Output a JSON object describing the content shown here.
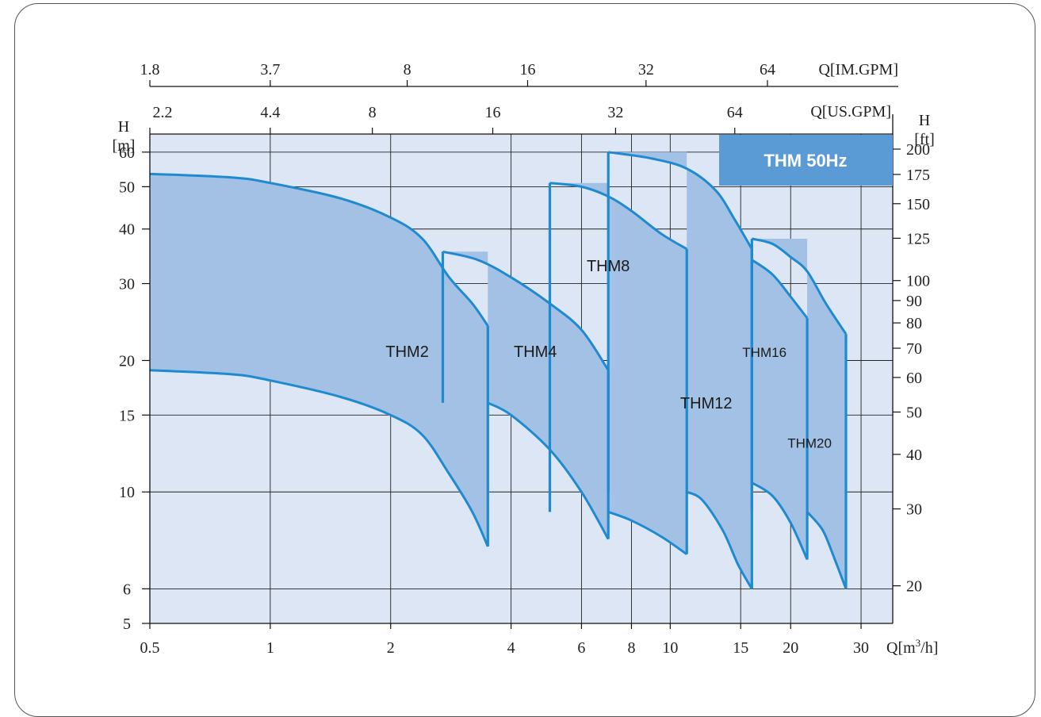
{
  "chart_data": {
    "type": "area",
    "badge": "THM 50Hz",
    "colors": {
      "plot_bg": "#dce6f4",
      "band_fill": "#a3c1e4",
      "curve": "#1f8ad0",
      "badge_bg": "#5b9bd5",
      "grid": "#222222"
    },
    "x_axis": {
      "label_main": "Q[m",
      "label_sup": "3",
      "label_end": "/h]",
      "scale": "log",
      "range": [
        0.5,
        36
      ],
      "ticks": [
        0.5,
        1,
        2,
        4,
        6,
        8,
        10,
        15,
        20,
        30
      ],
      "tick_labels": [
        "0.5",
        "1",
        "2",
        "4",
        "6",
        "8",
        "10",
        "15",
        "20",
        "30"
      ]
    },
    "y_axis_left": {
      "unit_letter": "H",
      "unit": "[m]",
      "scale": "log",
      "range": [
        5,
        66
      ],
      "ticks": [
        5,
        6,
        10,
        15,
        20,
        30,
        40,
        50,
        60
      ],
      "tick_labels": [
        "5",
        "6",
        "10",
        "15",
        "20",
        "30",
        "40",
        "50",
        "60"
      ],
      "grid_values": [
        6,
        10,
        15,
        20,
        30,
        40,
        50,
        60
      ]
    },
    "y_axis_right": {
      "unit_letter": "H",
      "unit": "[ft]",
      "ticks_ft": [
        20,
        30,
        40,
        50,
        60,
        70,
        80,
        90,
        100,
        125,
        150,
        175,
        200
      ],
      "tick_labels": [
        "20",
        "30",
        "40",
        "50",
        "60",
        "70",
        "80",
        "90",
        "100",
        "125",
        "150",
        "175",
        "200"
      ]
    },
    "us_gpm_axis": {
      "label": "Q[US.GPM]",
      "tick_labels": [
        "2.2",
        "4.4",
        "8",
        "16",
        "32",
        "64"
      ],
      "tick_q": [
        0.5,
        1,
        1.8,
        3.6,
        7.3,
        14.5
      ]
    },
    "im_gpm_axis": {
      "label": "Q[IM.GPM]",
      "tick_labels": [
        "1.8",
        "3.7",
        "8",
        "16",
        "32",
        "64"
      ],
      "tick_q": [
        0.5,
        1,
        2.2,
        4.4,
        8.7,
        17.5
      ]
    },
    "series": [
      {
        "name": "THM2",
        "label_at": [
          2.2,
          21
        ],
        "top": [
          [
            0.5,
            53.5
          ],
          [
            0.8,
            52.5
          ],
          [
            1.0,
            51
          ],
          [
            1.5,
            47
          ],
          [
            2.0,
            42.5
          ],
          [
            2.4,
            38
          ],
          [
            2.8,
            31
          ],
          [
            3.2,
            27
          ],
          [
            3.5,
            24
          ]
        ],
        "bottom": [
          [
            0.5,
            19
          ],
          [
            0.8,
            18.6
          ],
          [
            1.0,
            18
          ],
          [
            1.5,
            16.5
          ],
          [
            2.0,
            15
          ],
          [
            2.4,
            13.5
          ],
          [
            2.8,
            11
          ],
          [
            3.2,
            9
          ],
          [
            3.5,
            7.5
          ]
        ]
      },
      {
        "name": "THM4",
        "label_at": [
          4.6,
          21
        ],
        "top": [
          [
            2.7,
            35.5
          ],
          [
            3.3,
            34
          ],
          [
            4.0,
            31
          ],
          [
            5.0,
            27
          ],
          [
            6.0,
            23.5
          ],
          [
            7.0,
            19
          ]
        ],
        "bottom": [
          [
            3.5,
            16
          ],
          [
            4.0,
            15
          ],
          [
            5.0,
            12.5
          ],
          [
            6.0,
            10
          ],
          [
            7.0,
            7.8
          ]
        ]
      },
      {
        "name": "THM8",
        "label_at": [
          7.0,
          33
        ],
        "top": [
          [
            5.0,
            51
          ],
          [
            6.0,
            50
          ],
          [
            7.0,
            47.5
          ],
          [
            8.0,
            44
          ],
          [
            9.5,
            39
          ],
          [
            11.0,
            36
          ]
        ],
        "bottom": [
          [
            7.0,
            9
          ],
          [
            8.0,
            8.6
          ],
          [
            9.5,
            7.9
          ],
          [
            11.0,
            7.2
          ]
        ]
      },
      {
        "name": "THM12",
        "label_at": [
          12.3,
          16
        ],
        "top": [
          [
            7.0,
            60
          ],
          [
            9.0,
            58
          ],
          [
            11.0,
            55
          ],
          [
            13.0,
            49
          ],
          [
            14.5,
            42
          ],
          [
            16.0,
            36
          ]
        ],
        "bottom": [
          [
            11.0,
            10
          ],
          [
            12.0,
            9.6
          ],
          [
            13.5,
            8.2
          ],
          [
            14.8,
            6.8
          ],
          [
            16.0,
            6
          ]
        ]
      },
      {
        "name": "THM16",
        "label_at": [
          17.2,
          21
        ],
        "top": [
          [
            16.0,
            34
          ],
          [
            18.0,
            31.5
          ],
          [
            20.0,
            28
          ],
          [
            22.0,
            25
          ]
        ],
        "bottom": [
          [
            16.0,
            10.5
          ],
          [
            18.0,
            9.8
          ],
          [
            20.0,
            8.5
          ],
          [
            22.0,
            7
          ]
        ]
      },
      {
        "name": "THM20",
        "label_at": [
          22.3,
          13
        ],
        "top": [
          [
            16.0,
            38
          ],
          [
            18.0,
            37
          ],
          [
            20.0,
            34.5
          ],
          [
            22.0,
            32
          ],
          [
            24.5,
            27
          ],
          [
            27.5,
            23
          ]
        ],
        "bottom": [
          [
            22.0,
            9
          ],
          [
            24.0,
            8.2
          ],
          [
            25.5,
            7.2
          ],
          [
            27.5,
            6
          ]
        ]
      }
    ]
  }
}
